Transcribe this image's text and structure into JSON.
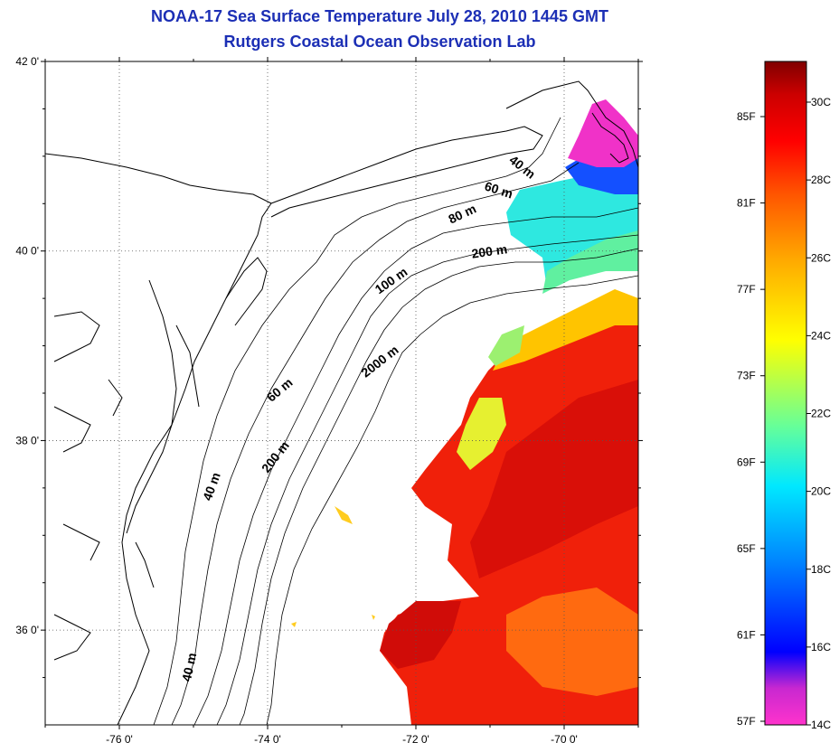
{
  "title_line1": "NOAA-17 Sea Surface Temperature July 28, 2010 1445 GMT",
  "title_line2": "Rutgers Coastal Ocean Observation Lab",
  "map": {
    "lat_ticks": [
      {
        "value": 42,
        "label": "42 0'"
      },
      {
        "value": 40,
        "label": "40 0'"
      },
      {
        "value": 38,
        "label": "38 0'"
      },
      {
        "value": 36,
        "label": "36 0'"
      }
    ],
    "lon_ticks": [
      {
        "value": -76,
        "label": "-76 0'"
      },
      {
        "value": -74,
        "label": "-74 0'"
      },
      {
        "value": -72,
        "label": "-72 0'"
      },
      {
        "value": -70,
        "label": "-70 0'"
      }
    ],
    "lat_range": [
      35.0,
      42.0
    ],
    "lon_range": [
      -77.0,
      -69.0
    ],
    "grid": "dotted",
    "contour_labels": [
      {
        "text": "40 m",
        "lon": -70.6,
        "lat": 40.85,
        "angle": 38
      },
      {
        "text": "60 m",
        "lon": -70.9,
        "lat": 40.6,
        "angle": 18
      },
      {
        "text": "80 m",
        "lon": -71.35,
        "lat": 40.35,
        "angle": -25
      },
      {
        "text": "200 m",
        "lon": -71.0,
        "lat": 39.95,
        "angle": -8
      },
      {
        "text": "100 m",
        "lon": -72.3,
        "lat": 39.65,
        "angle": -35
      },
      {
        "text": "2000 m",
        "lon": -72.45,
        "lat": 38.8,
        "angle": -38
      },
      {
        "text": "60 m",
        "lon": -73.8,
        "lat": 38.5,
        "angle": -40
      },
      {
        "text": "40 m",
        "lon": -74.7,
        "lat": 37.5,
        "angle": -70
      },
      {
        "text": "200 m",
        "lon": -73.85,
        "lat": 37.8,
        "angle": -52
      },
      {
        "text": "40 m",
        "lon": -75.0,
        "lat": 35.6,
        "angle": -78
      }
    ]
  },
  "colorbar": {
    "fahrenheit_labels": [
      "85F",
      "81F",
      "77F",
      "73F",
      "69F",
      "65F",
      "61F",
      "57F"
    ],
    "celsius_labels": [
      "30C",
      "28C",
      "26C",
      "24C",
      "22C",
      "20C",
      "18C",
      "16C",
      "14C"
    ],
    "colors": [
      "#ff33cc",
      "#8b22d0",
      "#0000ff",
      "#0088ff",
      "#00e8ff",
      "#66ff99",
      "#ffff00",
      "#ffaa00",
      "#ff5500",
      "#ff0000",
      "#cc0000",
      "#800000"
    ]
  },
  "colors": {
    "title": "#1c2fb5",
    "coast": "#000000",
    "grid": "#555555"
  }
}
